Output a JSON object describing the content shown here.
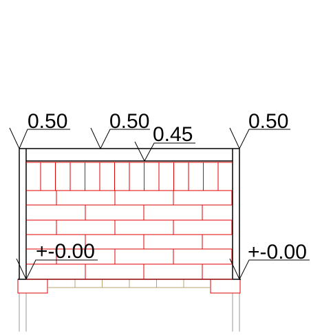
{
  "annotations": {
    "level_top_left": "0.50",
    "level_top_center": "0.50",
    "level_inner": "0.45",
    "level_top_right": "0.50",
    "elevation_left": "+-0.00",
    "elevation_right": "+-0.00"
  },
  "colors": {
    "outline": "#000000",
    "brick": "#e00000",
    "foundation_brick": "#b8a070",
    "foundation_outline": "#e00000",
    "pillar": "#9a9a9a"
  }
}
